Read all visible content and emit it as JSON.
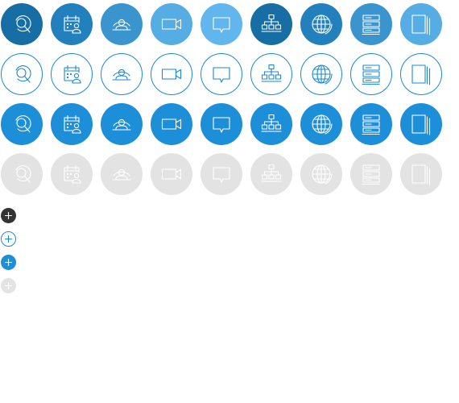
{
  "icon_set": [
    {
      "id": "search",
      "icon": "search-icon"
    },
    {
      "id": "calendar",
      "icon": "calendar-person-icon"
    },
    {
      "id": "webcam",
      "icon": "webcam-person-icon"
    },
    {
      "id": "video",
      "icon": "video-camera-icon"
    },
    {
      "id": "chat",
      "icon": "chat-bubble-icon"
    },
    {
      "id": "org",
      "icon": "org-chart-icon"
    },
    {
      "id": "globe",
      "icon": "globe-icon"
    },
    {
      "id": "server",
      "icon": "server-list-icon"
    },
    {
      "id": "documents",
      "icon": "documents-icon"
    }
  ],
  "rows": [
    {
      "style": "filled-gradient",
      "stroke": "#ffffff",
      "fills": [
        "#166ea5",
        "#2281bd",
        "#3a95cf",
        "#56ade4",
        "#62b6ee",
        "#166ea5",
        "#2281bd",
        "#3a95cf",
        "#56ade4"
      ]
    },
    {
      "style": "outline",
      "stroke": "#1a89d1",
      "border": "#1a89d1"
    },
    {
      "style": "filled",
      "stroke": "#ffffff",
      "fill": "#1d8fd8"
    },
    {
      "style": "disabled",
      "stroke": "#ffffff",
      "fill": "#e3e3e3"
    }
  ],
  "plus_buttons": [
    {
      "icon": "plus-icon",
      "style": "dark",
      "fill": "#333333",
      "stroke": "#ffffff"
    },
    {
      "icon": "plus-icon",
      "style": "outline",
      "fill": "#ffffff",
      "stroke": "#1a89d1"
    },
    {
      "icon": "plus-icon",
      "style": "filled",
      "fill": "#1d8fd8",
      "stroke": "#ffffff"
    },
    {
      "icon": "plus-icon",
      "style": "disabled",
      "fill": "#e3e3e3",
      "stroke": "#ffffff"
    }
  ]
}
